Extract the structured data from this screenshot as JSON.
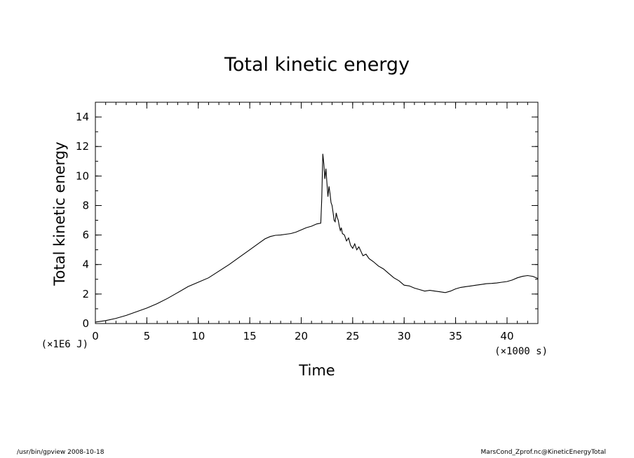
{
  "footer": {
    "left": "/usr/bin/gpview   2008-10-18",
    "right": "MarsCond_Zprof.nc@KineticEnergyTotal"
  },
  "chart_data": {
    "type": "line",
    "title": "Total kinetic energy",
    "xlabel": "Time",
    "ylabel": "Total kinetic energy",
    "x_unit_label": "(×1000 s)",
    "y_unit_label": "(×1E6 J)",
    "xlim": [
      0,
      43
    ],
    "ylim": [
      0,
      15
    ],
    "x_ticks": [
      0,
      5,
      10,
      15,
      20,
      25,
      30,
      35,
      40
    ],
    "y_ticks": [
      0,
      2,
      4,
      6,
      8,
      10,
      12,
      14
    ],
    "grid": false,
    "line_color": "#000000",
    "series": [
      {
        "x": [
          0,
          1,
          2,
          3,
          4,
          5,
          6,
          7,
          8,
          9,
          10,
          11,
          12,
          13,
          14,
          15,
          16,
          16.5,
          17,
          17.5,
          18,
          18.5,
          19,
          19.5,
          20,
          20.5,
          21,
          21.5,
          21.9,
          22.0,
          22.1,
          22.2,
          22.3,
          22.4,
          22.5,
          22.6,
          22.7,
          22.8,
          22.9,
          23.0,
          23.1,
          23.2,
          23.3,
          23.4,
          23.5,
          23.6,
          23.7,
          23.8,
          23.9,
          24.0,
          24.2,
          24.4,
          24.6,
          24.8,
          25.0,
          25.2,
          25.4,
          25.6,
          25.8,
          26.0,
          26.3,
          26.6,
          27.0,
          27.5,
          28.0,
          28.5,
          29.0,
          29.5,
          30.0,
          30.5,
          31.0,
          31.5,
          32.0,
          32.5,
          33.0,
          33.5,
          34.0,
          34.5,
          35.0,
          35.5,
          36.0,
          36.5,
          37.0,
          37.5,
          38.0,
          38.5,
          39.0,
          39.5,
          40.0,
          40.5,
          41.0,
          41.5,
          42.0,
          42.5,
          43.0
        ],
        "y": [
          0.1,
          0.2,
          0.35,
          0.55,
          0.8,
          1.05,
          1.35,
          1.7,
          2.1,
          2.5,
          2.8,
          3.1,
          3.55,
          4.0,
          4.5,
          5.0,
          5.5,
          5.75,
          5.9,
          5.98,
          6.0,
          6.05,
          6.1,
          6.2,
          6.35,
          6.5,
          6.6,
          6.75,
          6.8,
          8.5,
          11.5,
          10.8,
          9.8,
          10.5,
          9.5,
          8.6,
          9.3,
          8.8,
          8.2,
          8.0,
          7.5,
          7.0,
          6.9,
          7.5,
          7.2,
          7.0,
          6.6,
          6.3,
          6.5,
          6.1,
          6.0,
          5.6,
          5.8,
          5.3,
          5.1,
          5.4,
          5.0,
          5.2,
          4.9,
          4.6,
          4.7,
          4.4,
          4.2,
          3.9,
          3.7,
          3.4,
          3.1,
          2.9,
          2.6,
          2.55,
          2.4,
          2.3,
          2.2,
          2.25,
          2.2,
          2.15,
          2.1,
          2.2,
          2.35,
          2.45,
          2.5,
          2.55,
          2.6,
          2.65,
          2.7,
          2.72,
          2.75,
          2.8,
          2.85,
          2.95,
          3.1,
          3.2,
          3.25,
          3.2,
          3.05
        ]
      }
    ]
  }
}
